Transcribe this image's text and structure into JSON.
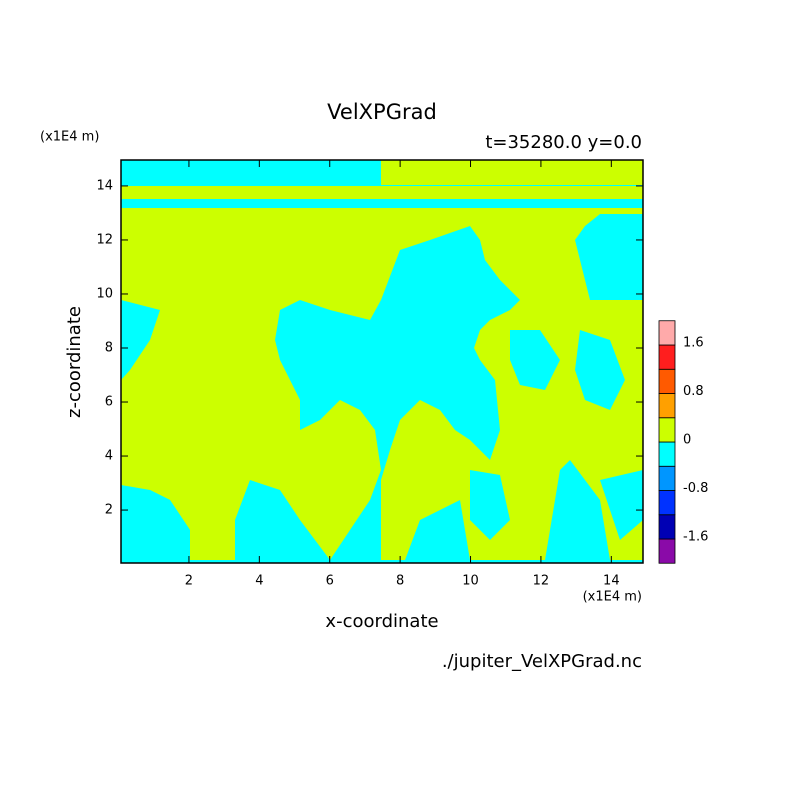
{
  "chart_data": {
    "type": "contour",
    "title": "VelXPGrad",
    "subtitle": "t=35280.0 y=0.0",
    "x_label": "x-coordinate",
    "y_label": "z-coordinate",
    "x_unit": "(x1E4 m)",
    "y_unit": "(x1E4 m)",
    "source": "./jupiter_VelXPGrad.nc",
    "xlim": [
      0.07,
      14.9
    ],
    "ylim": [
      0.04,
      14.96
    ],
    "xticks": [
      2,
      4,
      6,
      8,
      10,
      12,
      14
    ],
    "yticks": [
      2,
      4,
      6,
      8,
      10,
      12,
      14
    ],
    "levels": [
      -1.6,
      -1.2,
      -0.8,
      -0.4,
      0,
      0.4,
      0.8,
      1.2,
      1.6
    ],
    "colors": [
      "#8a0aa8",
      "#0000b4",
      "#0032ff",
      "#0096ff",
      "#00ffff",
      "#ccff00",
      "#ffa000",
      "#ff5a00",
      "#ff1e1e",
      "#ffaaaa"
    ],
    "colorbar_ticks": [
      -1.6,
      -0.8,
      0,
      0.8,
      1.6
    ]
  }
}
